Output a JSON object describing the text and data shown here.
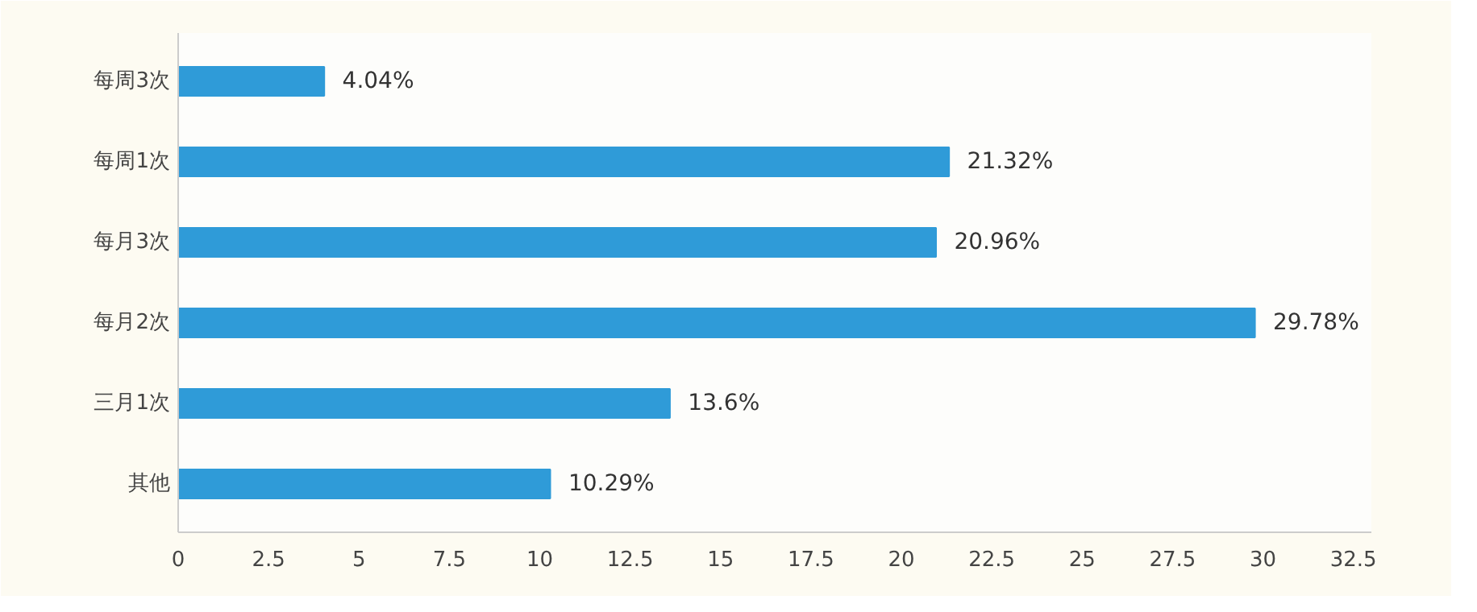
{
  "chart_data": {
    "type": "bar",
    "orientation": "horizontal",
    "categories": [
      "每周3次",
      "每周1次",
      "每月3次",
      "每月2次",
      "三月1次",
      "其他"
    ],
    "values": [
      4.04,
      21.32,
      20.96,
      29.78,
      13.6,
      10.29
    ],
    "value_labels": [
      "4.04%",
      "21.32%",
      "20.96%",
      "29.78%",
      "13.6%",
      "10.29%"
    ],
    "color": "#2f9bd8",
    "xlim": [
      0,
      33
    ],
    "xticks": [
      0,
      2.5,
      5,
      7.5,
      10,
      12.5,
      15,
      17.5,
      20,
      22.5,
      25,
      27.5,
      30,
      32.5
    ],
    "grid": false
  }
}
